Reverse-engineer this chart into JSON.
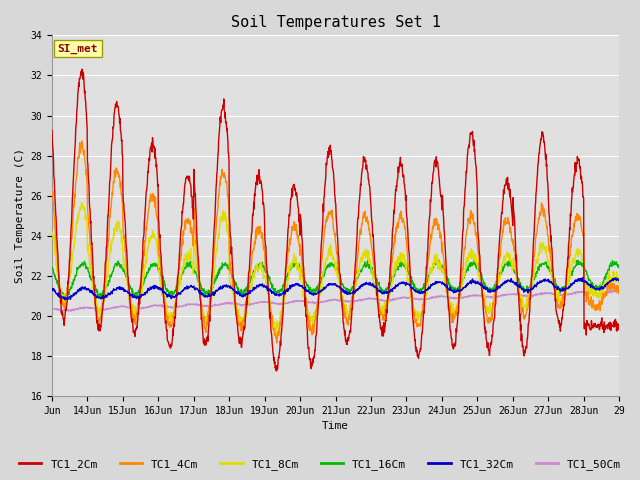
{
  "title": "Soil Temperatures Set 1",
  "xlabel": "Time",
  "ylabel": "Soil Temperature (C)",
  "ylim": [
    16,
    34
  ],
  "annotation_text": "SI_met",
  "series_colors": {
    "TC1_2Cm": "#cc0000",
    "TC1_4Cm": "#ff8800",
    "TC1_8Cm": "#dddd00",
    "TC1_16Cm": "#00bb00",
    "TC1_32Cm": "#0000cc",
    "TC1_50Cm": "#cc88cc"
  },
  "x_tick_labels": [
    "Jun",
    "14Jun",
    "15Jun",
    "16Jun",
    "17Jun",
    "18Jun",
    "19Jun",
    "20Jun",
    "21Jun",
    "22Jun",
    "23Jun",
    "24Jun",
    "25Jun",
    "26Jun",
    "27Jun",
    "28Jun",
    "29"
  ],
  "title_fontsize": 11,
  "axis_label_fontsize": 8,
  "tick_fontsize": 7,
  "legend_fontsize": 8,
  "linewidth": 1.0
}
